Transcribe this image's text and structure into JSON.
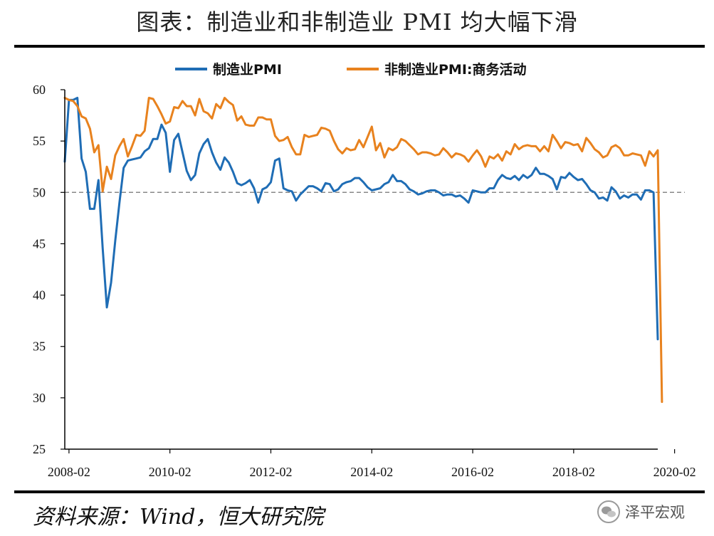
{
  "title": "图表：制造业和非制造业 PMI 均大幅下滑",
  "source": "资料来源：Wind，恒大研究院",
  "watermark": "泽平宏观",
  "chart_data": {
    "type": "line",
    "start": "2008-01",
    "x_tick_labels": [
      "2008-02",
      "2010-02",
      "2012-02",
      "2014-02",
      "2016-02",
      "2018-02",
      "2020-02"
    ],
    "ylim": [
      25,
      60
    ],
    "y_ticks": [
      25,
      30,
      35,
      40,
      45,
      50,
      55,
      60
    ],
    "reference_line": 50,
    "legend_position": "top",
    "colors": {
      "manufacturing": "#1F6DB5",
      "non_manufacturing": "#E8821E",
      "reference": "#888888",
      "axis": "#000000"
    },
    "series": [
      {
        "name": "制造业PMI",
        "color": "#1F6DB5",
        "values": [
          53.0,
          59.0,
          59.0,
          59.2,
          53.3,
          52.0,
          48.4,
          48.4,
          51.2,
          44.6,
          38.8,
          41.2,
          45.3,
          49.0,
          52.4,
          53.1,
          53.2,
          53.3,
          53.4,
          54.0,
          54.3,
          55.2,
          55.2,
          56.6,
          55.8,
          52.0,
          55.1,
          55.7,
          53.9,
          52.1,
          51.2,
          51.7,
          53.8,
          54.7,
          55.2,
          53.9,
          52.9,
          52.2,
          53.4,
          52.9,
          52.0,
          50.9,
          50.7,
          50.9,
          51.2,
          50.4,
          49.0,
          50.3,
          50.5,
          51.0,
          53.1,
          53.3,
          50.4,
          50.2,
          50.1,
          49.2,
          49.8,
          50.2,
          50.6,
          50.6,
          50.4,
          50.1,
          50.9,
          50.8,
          50.1,
          50.3,
          50.8,
          51.0,
          51.1,
          51.4,
          51.4,
          51.0,
          50.5,
          50.2,
          50.3,
          50.4,
          50.8,
          51.0,
          51.7,
          51.1,
          51.1,
          50.8,
          50.3,
          50.1,
          49.8,
          49.9,
          50.1,
          50.2,
          50.2,
          50.0,
          49.7,
          49.8,
          49.8,
          49.6,
          49.7,
          49.4,
          49.0,
          50.2,
          50.1,
          50.0,
          50.0,
          50.4,
          50.4,
          51.2,
          51.7,
          51.4,
          51.3,
          51.6,
          51.2,
          51.7,
          51.4,
          51.7,
          52.4,
          51.8,
          51.8,
          51.6,
          51.3,
          50.3,
          51.5,
          51.4,
          51.9,
          51.5,
          51.2,
          51.3,
          50.8,
          50.2,
          50.0,
          49.4,
          49.5,
          49.2,
          50.5,
          50.1,
          49.4,
          49.7,
          49.5,
          49.8,
          49.8,
          49.3,
          50.2,
          50.2,
          50.0,
          35.7
        ]
      },
      {
        "name": "非制造业PMI:商务活动",
        "color": "#E8821E",
        "values": [
          59.2,
          59.0,
          58.9,
          58.4,
          57.4,
          57.2,
          56.2,
          53.9,
          54.6,
          50.1,
          52.5,
          51.3,
          53.6,
          54.5,
          55.2,
          53.5,
          54.5,
          55.6,
          55.5,
          56.0,
          59.2,
          59.1,
          58.4,
          57.6,
          56.7,
          56.9,
          58.3,
          58.2,
          58.9,
          58.4,
          58.4,
          57.5,
          59.1,
          57.9,
          57.7,
          57.2,
          58.6,
          58.2,
          59.2,
          58.8,
          58.5,
          57.0,
          57.4,
          56.6,
          56.5,
          56.5,
          57.3,
          57.3,
          57.1,
          57.1,
          55.5,
          55.0,
          55.1,
          55.4,
          54.4,
          53.7,
          53.7,
          55.6,
          55.4,
          55.5,
          55.6,
          56.3,
          56.2,
          56.0,
          55.0,
          54.2,
          53.8,
          54.3,
          54.1,
          54.2,
          55.1,
          54.4,
          55.4,
          56.4,
          54.1,
          54.8,
          53.4,
          54.3,
          54.1,
          54.4,
          55.2,
          55.0,
          54.6,
          54.2,
          53.7,
          53.9,
          53.9,
          53.8,
          53.6,
          53.7,
          54.3,
          53.9,
          53.4,
          53.8,
          53.7,
          53.5,
          53.0,
          53.6,
          54.1,
          53.5,
          52.5,
          53.5,
          53.3,
          53.7,
          53.1,
          54.0,
          53.7,
          54.7,
          54.2,
          54.5,
          54.6,
          54.5,
          54.5,
          54.0,
          54.5,
          54.0,
          55.6,
          55.0,
          54.3,
          54.9,
          54.8,
          54.6,
          54.7,
          54.0,
          55.3,
          54.8,
          54.2,
          53.9,
          53.4,
          53.6,
          54.4,
          54.6,
          54.3,
          53.6,
          53.6,
          53.8,
          53.7,
          53.6,
          52.6,
          54.0,
          53.5,
          54.1,
          29.6
        ]
      }
    ]
  }
}
